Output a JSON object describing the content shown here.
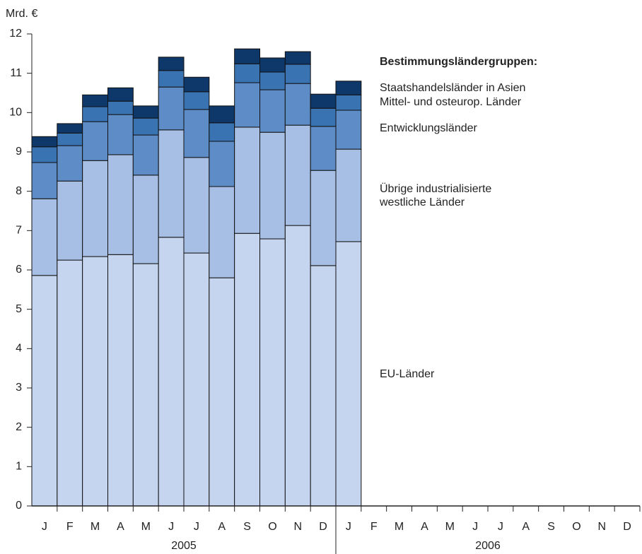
{
  "chart_data": {
    "type": "stacked_bar",
    "y_label": "Mrd. €",
    "legend_title": "Bestimmungsländergruppen:",
    "categories": [
      "J",
      "F",
      "M",
      "A",
      "M",
      "J",
      "J",
      "A",
      "S",
      "O",
      "N",
      "D",
      "J",
      "F",
      "M",
      "A",
      "M",
      "J",
      "J",
      "A",
      "S",
      "O",
      "N",
      "D"
    ],
    "years": [
      "2005",
      "2006"
    ],
    "series": [
      {
        "name": "EU-Länder",
        "color": "#c6d5ef",
        "values": [
          5.86,
          6.25,
          6.34,
          6.39,
          6.16,
          6.83,
          6.43,
          5.8,
          6.93,
          6.79,
          7.13,
          6.11,
          6.72,
          null,
          null,
          null,
          null,
          null,
          null,
          null,
          null,
          null,
          null,
          null
        ]
      },
      {
        "name": "Übrige industrialisierte\nwestliche Länder",
        "color": "#a8bfe5",
        "values": [
          1.95,
          2.01,
          2.44,
          2.54,
          2.25,
          2.73,
          2.43,
          2.32,
          2.7,
          2.71,
          2.55,
          2.42,
          2.35,
          null,
          null,
          null,
          null,
          null,
          null,
          null,
          null,
          null,
          null,
          null
        ]
      },
      {
        "name": "Entwicklungsländer",
        "color": "#5d8cc6",
        "values": [
          0.92,
          0.9,
          0.99,
          1.02,
          1.02,
          1.09,
          1.22,
          1.15,
          1.13,
          1.08,
          1.06,
          1.12,
          0.99,
          null,
          null,
          null,
          null,
          null,
          null,
          null,
          null,
          null,
          null,
          null
        ]
      },
      {
        "name": "Mittel- und osteurop. Länder",
        "color": "#3a73b2",
        "values": [
          0.4,
          0.32,
          0.38,
          0.34,
          0.43,
          0.42,
          0.45,
          0.47,
          0.48,
          0.45,
          0.49,
          0.46,
          0.39,
          null,
          null,
          null,
          null,
          null,
          null,
          null,
          null,
          null,
          null,
          null
        ]
      },
      {
        "name": "Staatshandelsländer in Asien",
        "color": "#0e376a",
        "values": [
          0.26,
          0.24,
          0.3,
          0.34,
          0.31,
          0.34,
          0.37,
          0.43,
          0.38,
          0.36,
          0.32,
          0.36,
          0.35,
          null,
          null,
          null,
          null,
          null,
          null,
          null,
          null,
          null,
          null,
          null
        ]
      }
    ],
    "ylim": [
      0,
      12
    ],
    "yticks": [
      0,
      1,
      2,
      3,
      4,
      5,
      6,
      7,
      8,
      9,
      10,
      11,
      12
    ],
    "grid": false
  }
}
